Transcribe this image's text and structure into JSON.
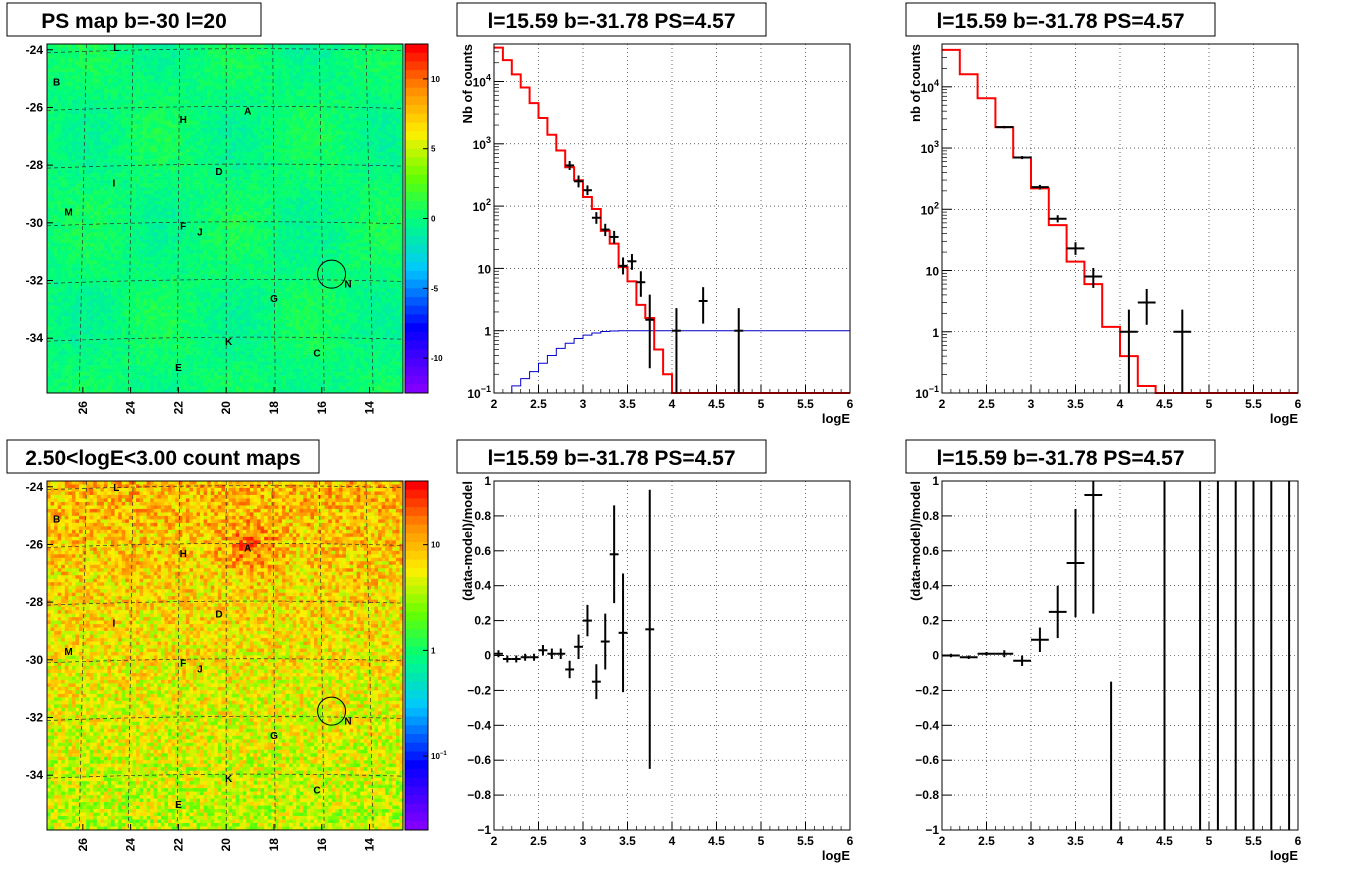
{
  "colors": {
    "model": "#ff0000",
    "aux": "#0000cc",
    "data": "#000000",
    "frame": "#000000"
  },
  "chart_data": [
    {
      "type": "heatmap",
      "title": "PS map b=-30 l=20",
      "yticks": [
        "-24",
        "-26",
        "-28",
        "-30",
        "-32",
        "-34"
      ],
      "xticks": [
        "26",
        "24",
        "22",
        "20",
        "18",
        "16",
        "14"
      ],
      "ylim": [
        -35.9,
        -23.8
      ],
      "xlim": [
        27.5,
        12.6
      ],
      "colorbar_ticks": [
        "10",
        "5",
        "0",
        "-5",
        "-10"
      ],
      "colorbar_range": [
        -12.5,
        12.5
      ],
      "colormap": "rainbow-purple-to-red",
      "dominant_value": 0,
      "circle_marker": {
        "l": 15.59,
        "b": -31.78
      },
      "sources": [
        {
          "name": "L",
          "l": 24.6,
          "b": -23.9
        },
        {
          "name": "B",
          "l": 27.1,
          "b": -25.1
        },
        {
          "name": "H",
          "l": 21.8,
          "b": -26.4
        },
        {
          "name": "A",
          "l": 19.1,
          "b": -26.1
        },
        {
          "name": "D",
          "l": 20.3,
          "b": -28.2
        },
        {
          "name": "I",
          "l": 24.7,
          "b": -28.6
        },
        {
          "name": "M",
          "l": 26.6,
          "b": -29.6
        },
        {
          "name": "F",
          "l": 21.8,
          "b": -30.1
        },
        {
          "name": "J",
          "l": 21.1,
          "b": -30.3
        },
        {
          "name": "G",
          "l": 18.0,
          "b": -32.6
        },
        {
          "name": "N",
          "l": 14.9,
          "b": -32.1
        },
        {
          "name": "K",
          "l": 19.9,
          "b": -34.1
        },
        {
          "name": "C",
          "l": 16.2,
          "b": -34.5
        },
        {
          "name": "E",
          "l": 22.0,
          "b": -35.0
        }
      ]
    },
    {
      "type": "line",
      "title": "l=15.59 b=-31.78 PS=4.57",
      "xlabel": "logE",
      "ylabel": "Nb of counts",
      "yscale": "log",
      "xlim": [
        2,
        6
      ],
      "ylim": [
        0.1,
        40000
      ],
      "xticks": [
        "2",
        "2.5",
        "3",
        "3.5",
        "4",
        "4.5",
        "5",
        "5.5",
        "6"
      ],
      "yticks": [
        {
          "v": 0.1,
          "t": "10",
          "sup": "−1"
        },
        {
          "v": 1,
          "t": "1"
        },
        {
          "v": 10,
          "t": "10"
        },
        {
          "v": 100,
          "t": "10",
          "sup": "2"
        },
        {
          "v": 1000,
          "t": "10",
          "sup": "3"
        },
        {
          "v": 10000,
          "t": "10",
          "sup": "4"
        }
      ],
      "model_bin_width": 0.1,
      "model": [
        35000,
        22000,
        13000,
        8000,
        4500,
        2600,
        1400,
        780,
        420,
        260,
        140,
        90,
        40,
        25,
        10.5,
        6.2,
        2.6,
        1.6,
        0.5,
        0.2,
        0.1,
        0.1,
        0.1,
        0.1,
        0.1,
        0.1,
        0.1,
        0.1,
        0.1,
        0.1,
        0.1,
        0.1,
        0.1,
        0.1,
        0.1,
        0.1,
        0.1,
        0.1,
        0.1,
        0.1
      ],
      "aux": [
        0.1,
        0.1,
        0.13,
        0.17,
        0.22,
        0.3,
        0.4,
        0.52,
        0.63,
        0.75,
        0.85,
        0.92,
        0.97,
        0.99,
        1,
        1,
        1,
        1,
        1,
        1,
        1,
        1,
        1,
        1,
        1,
        1,
        1,
        1,
        1,
        1,
        1,
        1,
        1,
        1,
        1,
        1,
        1,
        1,
        1,
        1
      ],
      "points": [
        {
          "x": 2.85,
          "y": 450,
          "lo": 380,
          "hi": 530,
          "xe": 0.05
        },
        {
          "x": 2.95,
          "y": 250,
          "lo": 200,
          "hi": 310,
          "xe": 0.05
        },
        {
          "x": 3.05,
          "y": 180,
          "lo": 150,
          "hi": 215,
          "xe": 0.05
        },
        {
          "x": 3.15,
          "y": 65,
          "lo": 52,
          "hi": 80,
          "xe": 0.05
        },
        {
          "x": 3.25,
          "y": 42,
          "lo": 33,
          "hi": 52,
          "xe": 0.05
        },
        {
          "x": 3.35,
          "y": 32,
          "lo": 25,
          "hi": 40,
          "xe": 0.05
        },
        {
          "x": 3.45,
          "y": 11,
          "lo": 8,
          "hi": 15,
          "xe": 0.05
        },
        {
          "x": 3.55,
          "y": 13,
          "lo": 9.5,
          "hi": 17,
          "xe": 0.05
        },
        {
          "x": 3.65,
          "y": 6,
          "lo": 3.5,
          "hi": 9,
          "xe": 0.05
        },
        {
          "x": 3.75,
          "y": 1.5,
          "lo": 0.25,
          "hi": 3.8,
          "xe": 0.05
        },
        {
          "x": 4.05,
          "y": 1,
          "lo": 0.1,
          "hi": 2.3,
          "xe": 0.05
        },
        {
          "x": 4.35,
          "y": 3,
          "lo": 1.3,
          "hi": 5,
          "xe": 0.05
        },
        {
          "x": 4.75,
          "y": 1,
          "lo": 0.1,
          "hi": 2.3,
          "xe": 0.05
        }
      ]
    },
    {
      "type": "line",
      "title": "l=15.59 b=-31.78 PS=4.57",
      "xlabel": "logE",
      "ylabel": "nb of counts",
      "yscale": "log",
      "xlim": [
        2,
        6
      ],
      "ylim": [
        0.1,
        50000
      ],
      "xticks": [
        "2",
        "2.5",
        "3",
        "3.5",
        "4",
        "4.5",
        "5",
        "5.5",
        "6"
      ],
      "yticks": [
        {
          "v": 0.1,
          "t": "10",
          "sup": "−1"
        },
        {
          "v": 1,
          "t": "1"
        },
        {
          "v": 10,
          "t": "10"
        },
        {
          "v": 100,
          "t": "10",
          "sup": "2"
        },
        {
          "v": 1000,
          "t": "10",
          "sup": "3"
        },
        {
          "v": 10000,
          "t": "10",
          "sup": "4"
        }
      ],
      "model_bin_width": 0.2,
      "model": [
        40000,
        16000,
        6500,
        2200,
        700,
        220,
        55,
        14,
        6,
        1.2,
        0.4,
        0.13,
        0.1,
        0.1,
        0.1,
        0.1,
        0.1,
        0.1,
        0.1,
        0.1
      ],
      "points": [
        {
          "x": 2.7,
          "y": 2200,
          "lo": 2100,
          "hi": 2300,
          "xe": 0.1
        },
        {
          "x": 2.9,
          "y": 700,
          "lo": 660,
          "hi": 740,
          "xe": 0.1
        },
        {
          "x": 3.1,
          "y": 230,
          "lo": 210,
          "hi": 250,
          "xe": 0.1
        },
        {
          "x": 3.3,
          "y": 70,
          "lo": 61,
          "hi": 80,
          "xe": 0.1
        },
        {
          "x": 3.5,
          "y": 23,
          "lo": 18,
          "hi": 29,
          "xe": 0.1
        },
        {
          "x": 3.7,
          "y": 8,
          "lo": 5.2,
          "hi": 11,
          "xe": 0.1
        },
        {
          "x": 4.1,
          "y": 1,
          "lo": 0.1,
          "hi": 2.3,
          "xe": 0.1
        },
        {
          "x": 4.3,
          "y": 3,
          "lo": 1.3,
          "hi": 5,
          "xe": 0.1
        },
        {
          "x": 4.7,
          "y": 1,
          "lo": 0.1,
          "hi": 2.3,
          "xe": 0.1
        }
      ]
    },
    {
      "type": "heatmap",
      "title": "2.50<logE<3.00 count maps",
      "yticks": [
        "-24",
        "-26",
        "-28",
        "-30",
        "-32",
        "-34"
      ],
      "xticks": [
        "26",
        "24",
        "22",
        "20",
        "18",
        "16",
        "14"
      ],
      "ylim": [
        -35.9,
        -23.8
      ],
      "xlim": [
        27.5,
        12.6
      ],
      "colorbar_ticks": [
        {
          "t": "10",
          "v": 10
        },
        {
          "t": "1",
          "v": 1
        },
        {
          "t": "10",
          "sup": "−1",
          "v": 0.1
        }
      ],
      "colorbar_range": [
        0.02,
        40
      ],
      "colorbar_scale": "log",
      "colormap": "rainbow-purple-to-red",
      "circle_marker": {
        "l": 15.59,
        "b": -31.78
      },
      "sources": [
        {
          "name": "L",
          "l": 24.6,
          "b": -24.0
        },
        {
          "name": "B",
          "l": 27.1,
          "b": -25.1
        },
        {
          "name": "H",
          "l": 21.8,
          "b": -26.3
        },
        {
          "name": "A",
          "l": 19.1,
          "b": -26.1
        },
        {
          "name": "D",
          "l": 20.3,
          "b": -28.4
        },
        {
          "name": "I",
          "l": 24.7,
          "b": -28.7
        },
        {
          "name": "M",
          "l": 26.6,
          "b": -29.7
        },
        {
          "name": "F",
          "l": 21.8,
          "b": -30.1
        },
        {
          "name": "J",
          "l": 21.1,
          "b": -30.3
        },
        {
          "name": "G",
          "l": 18.0,
          "b": -32.6
        },
        {
          "name": "N",
          "l": 14.9,
          "b": -32.1
        },
        {
          "name": "K",
          "l": 19.9,
          "b": -34.1
        },
        {
          "name": "C",
          "l": 16.2,
          "b": -34.5
        },
        {
          "name": "E",
          "l": 22.0,
          "b": -35.0
        }
      ]
    },
    {
      "type": "scatter",
      "title": "l=15.59 b=-31.78 PS=4.57",
      "xlabel": "logE",
      "ylabel": "(data-model)/model",
      "xlim": [
        2,
        6
      ],
      "ylim": [
        -1,
        1
      ],
      "xticks": [
        "2",
        "2.5",
        "3",
        "3.5",
        "4",
        "4.5",
        "5",
        "5.5",
        "6"
      ],
      "yticks": [
        "−1",
        "−0.8",
        "−0.6",
        "−0.4",
        "−0.2",
        "0",
        "0.2",
        "0.4",
        "0.6",
        "0.8",
        "1"
      ],
      "points": [
        {
          "x": 2.05,
          "y": 0.01,
          "lo": -0.01,
          "hi": 0.03,
          "xe": 0.05
        },
        {
          "x": 2.15,
          "y": -0.02,
          "lo": -0.04,
          "hi": 0.0,
          "xe": 0.05
        },
        {
          "x": 2.25,
          "y": -0.02,
          "lo": -0.04,
          "hi": 0.0,
          "xe": 0.05
        },
        {
          "x": 2.35,
          "y": -0.01,
          "lo": -0.03,
          "hi": 0.01,
          "xe": 0.05
        },
        {
          "x": 2.45,
          "y": -0.01,
          "lo": -0.03,
          "hi": 0.01,
          "xe": 0.05
        },
        {
          "x": 2.55,
          "y": 0.03,
          "lo": 0.0,
          "hi": 0.06,
          "xe": 0.05
        },
        {
          "x": 2.65,
          "y": 0.01,
          "lo": -0.02,
          "hi": 0.04,
          "xe": 0.05
        },
        {
          "x": 2.75,
          "y": 0.01,
          "lo": -0.02,
          "hi": 0.04,
          "xe": 0.05
        },
        {
          "x": 2.85,
          "y": -0.08,
          "lo": -0.13,
          "hi": -0.03,
          "xe": 0.05
        },
        {
          "x": 2.95,
          "y": 0.05,
          "lo": -0.02,
          "hi": 0.12,
          "xe": 0.05
        },
        {
          "x": 3.05,
          "y": 0.2,
          "lo": 0.11,
          "hi": 0.29,
          "xe": 0.05
        },
        {
          "x": 3.15,
          "y": -0.15,
          "lo": -0.25,
          "hi": -0.05,
          "xe": 0.05
        },
        {
          "x": 3.25,
          "y": 0.08,
          "lo": -0.08,
          "hi": 0.24,
          "xe": 0.05
        },
        {
          "x": 3.35,
          "y": 0.58,
          "lo": 0.3,
          "hi": 0.86,
          "xe": 0.05
        },
        {
          "x": 3.45,
          "y": 0.13,
          "lo": -0.21,
          "hi": 0.47,
          "xe": 0.05
        },
        {
          "x": 3.75,
          "y": 0.15,
          "lo": -0.65,
          "hi": 0.95,
          "xe": 0.05
        }
      ]
    },
    {
      "type": "scatter",
      "title": "l=15.59 b=-31.78 PS=4.57",
      "xlabel": "logE",
      "ylabel": "(data-model)/model",
      "xlim": [
        2,
        6
      ],
      "ylim": [
        -1,
        1
      ],
      "xticks": [
        "2",
        "2.5",
        "3",
        "3.5",
        "4",
        "4.5",
        "5",
        "5.5",
        "6"
      ],
      "yticks": [
        "−1",
        "−0.8",
        "−0.6",
        "−0.4",
        "−0.2",
        "0",
        "0.2",
        "0.4",
        "0.6",
        "0.8",
        "1"
      ],
      "points": [
        {
          "x": 2.1,
          "y": 0.0,
          "lo": -0.01,
          "hi": 0.01,
          "xe": 0.1
        },
        {
          "x": 2.3,
          "y": -0.01,
          "lo": -0.02,
          "hi": 0.0,
          "xe": 0.1
        },
        {
          "x": 2.5,
          "y": 0.01,
          "lo": 0.0,
          "hi": 0.02,
          "xe": 0.1
        },
        {
          "x": 2.7,
          "y": 0.01,
          "lo": -0.01,
          "hi": 0.03,
          "xe": 0.1
        },
        {
          "x": 2.9,
          "y": -0.03,
          "lo": -0.06,
          "hi": 0.0,
          "xe": 0.1
        },
        {
          "x": 3.1,
          "y": 0.09,
          "lo": 0.02,
          "hi": 0.16,
          "xe": 0.1
        },
        {
          "x": 3.3,
          "y": 0.25,
          "lo": 0.1,
          "hi": 0.4,
          "xe": 0.1
        },
        {
          "x": 3.5,
          "y": 0.53,
          "lo": 0.22,
          "hi": 0.84,
          "xe": 0.1
        },
        {
          "x": 3.7,
          "y": 0.92,
          "lo": 0.24,
          "hi": 1.0,
          "xe": 0.1
        },
        {
          "x": 3.9,
          "y": null,
          "lo": -1.0,
          "hi": -0.15,
          "xe": 0
        },
        {
          "x": 4.5,
          "y": null,
          "lo": -1.0,
          "hi": 1.0,
          "xe": 0
        },
        {
          "x": 4.9,
          "y": null,
          "lo": -1.0,
          "hi": 1.0,
          "xe": 0
        },
        {
          "x": 5.1,
          "y": null,
          "lo": -1.0,
          "hi": 1.0,
          "xe": 0
        },
        {
          "x": 5.3,
          "y": null,
          "lo": -1.0,
          "hi": 1.0,
          "xe": 0
        },
        {
          "x": 5.5,
          "y": null,
          "lo": -1.0,
          "hi": 1.0,
          "xe": 0
        },
        {
          "x": 5.7,
          "y": null,
          "lo": -1.0,
          "hi": 1.0,
          "xe": 0
        },
        {
          "x": 5.9,
          "y": null,
          "lo": -1.0,
          "hi": 1.0,
          "xe": 0
        }
      ]
    }
  ]
}
